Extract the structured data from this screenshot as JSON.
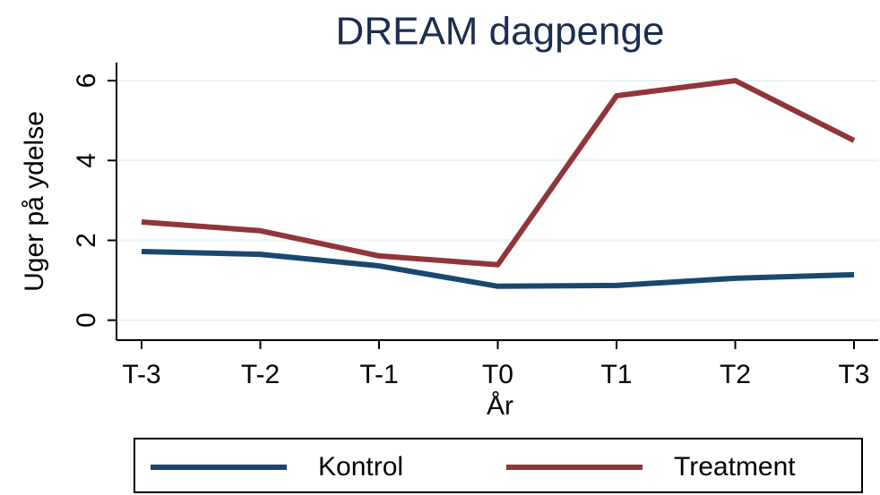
{
  "chart_data": {
    "type": "line",
    "title": "DREAM dagpenge",
    "x_label": "År",
    "y_label": "Uger på ydelse",
    "categories": [
      "T-3",
      "T-2",
      "T-1",
      "T0",
      "T1",
      "T2",
      "T3"
    ],
    "series": [
      {
        "name": "Kontrol",
        "color": "#1a476f",
        "values": [
          1.72,
          1.65,
          1.36,
          0.85,
          0.87,
          1.05,
          1.14
        ]
      },
      {
        "name": "Treatment",
        "color": "#90353b",
        "values": [
          2.46,
          2.24,
          1.61,
          1.39,
          5.62,
          6.0,
          4.5
        ]
      }
    ],
    "ylim": [
      -0.5,
      6.45
    ],
    "yticks": [
      0,
      2,
      4,
      6
    ],
    "grid": true
  }
}
